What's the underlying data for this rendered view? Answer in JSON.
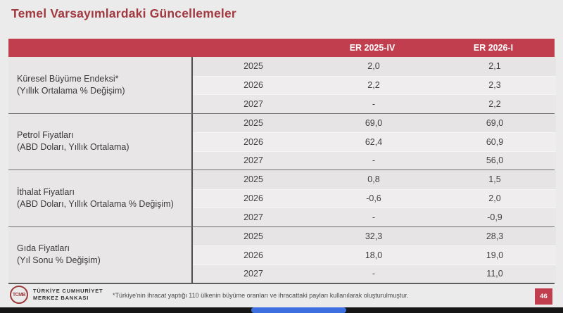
{
  "page": {
    "title": "Temel Varsayımlardaki Güncellemeler",
    "page_number": "46"
  },
  "colors": {
    "accent_red": "#c03e4e",
    "title_red": "#a03a40",
    "progress_blue": "#3e6fe0"
  },
  "table": {
    "columns": [
      "ER 2025-IV",
      "ER 2026-I"
    ],
    "groups": [
      {
        "label_line1": "Küresel Büyüme Endeksi*",
        "label_line2": "(Yıllık Ortalama % Değişim)",
        "rows": [
          {
            "year": "2025",
            "er_2025_iv": "2,0",
            "er_2026_i": "2,1"
          },
          {
            "year": "2026",
            "er_2025_iv": "2,2",
            "er_2026_i": "2,3"
          },
          {
            "year": "2027",
            "er_2025_iv": "-",
            "er_2026_i": "2,2"
          }
        ]
      },
      {
        "label_line1": "Petrol Fiyatları",
        "label_line2": "(ABD Doları, Yıllık Ortalama)",
        "rows": [
          {
            "year": "2025",
            "er_2025_iv": "69,0",
            "er_2026_i": "69,0"
          },
          {
            "year": "2026",
            "er_2025_iv": "62,4",
            "er_2026_i": "60,9"
          },
          {
            "year": "2027",
            "er_2025_iv": "-",
            "er_2026_i": "56,0"
          }
        ]
      },
      {
        "label_line1": "İthalat Fiyatları",
        "label_line2": "(ABD Doları, Yıllık Ortalama % Değişim)",
        "rows": [
          {
            "year": "2025",
            "er_2025_iv": "0,8",
            "er_2026_i": "1,5"
          },
          {
            "year": "2026",
            "er_2025_iv": "-0,6",
            "er_2026_i": "2,0"
          },
          {
            "year": "2027",
            "er_2025_iv": "-",
            "er_2026_i": "-0,9"
          }
        ]
      },
      {
        "label_line1": "Gıda Fiyatları",
        "label_line2": "(Yıl Sonu % Değişim)",
        "rows": [
          {
            "year": "2025",
            "er_2025_iv": "32,3",
            "er_2026_i": "28,3"
          },
          {
            "year": "2026",
            "er_2025_iv": "18,0",
            "er_2026_i": "19,0"
          },
          {
            "year": "2027",
            "er_2025_iv": "-",
            "er_2026_i": "11,0"
          }
        ]
      }
    ]
  },
  "footer": {
    "logo_monogram": "TCMB",
    "bank_name_line1": "TÜRKİYE CUMHURİYET",
    "bank_name_line2": "MERKEZ BANKASI",
    "footnote": "*Türkiye'nin ihracat yaptığı 110 ülkenin büyüme oranları ve ihracattaki payları kullanılarak oluşturulmuştur."
  }
}
